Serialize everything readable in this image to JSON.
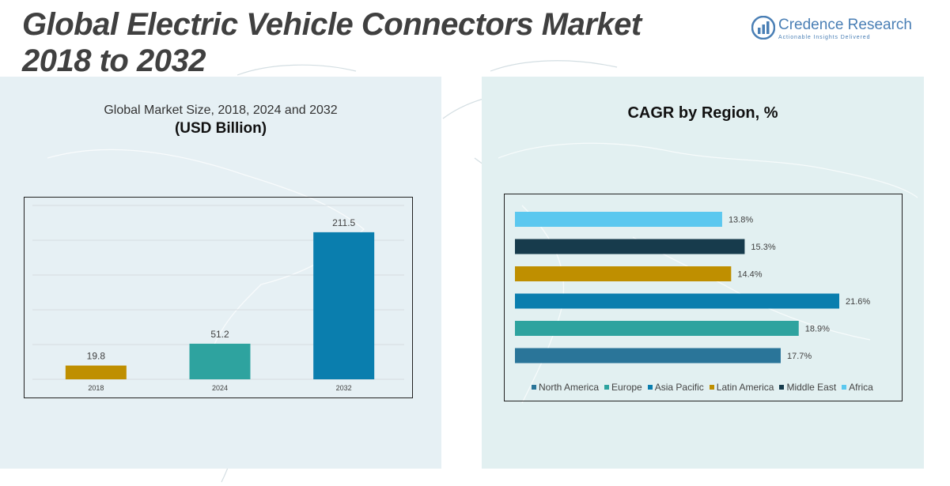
{
  "header": {
    "title_line1": "Global Electric Vehicle Connectors Market",
    "title_line2": "2018 to 2032"
  },
  "logo": {
    "name": "Credence Research",
    "tagline": "Actionable Insights Delivered"
  },
  "left_panel": {
    "subtitle": "Global Market Size, 2018, 2024 and 2032",
    "unit": "(USD Billion)"
  },
  "right_panel": {
    "title": "CAGR by Region, %"
  },
  "chart_data": [
    {
      "type": "bar",
      "title": "Global Market Size, 2018, 2024 and 2032",
      "ylabel": "USD Billion",
      "categories": [
        "2018",
        "2024",
        "2032"
      ],
      "values": [
        19.8,
        51.2,
        211.5
      ],
      "value_labels": [
        "19.8",
        "51.2",
        "211.5"
      ],
      "colors": [
        "#bf8f00",
        "#2ea39f",
        "#0a7eae"
      ],
      "ylim": [
        0,
        250
      ],
      "grid": true
    },
    {
      "type": "bar",
      "orientation": "horizontal",
      "title": "CAGR by Region, %",
      "categories": [
        "Africa",
        "Middle East",
        "Latin America",
        "Asia Pacific",
        "Europe",
        "North America"
      ],
      "values": [
        13.8,
        15.3,
        14.4,
        21.6,
        18.9,
        17.7
      ],
      "value_labels": [
        "13.8%",
        "15.3%",
        "14.4%",
        "21.6%",
        "18.9%",
        "17.7%"
      ],
      "colors": [
        "#5bc8ef",
        "#173b4c",
        "#bf8f00",
        "#0a7eae",
        "#2ea39f",
        "#2a7599"
      ],
      "xlim": [
        0,
        22
      ],
      "legend": {
        "position": "bottom",
        "entries": [
          {
            "label": "North America",
            "color": "#2a7599"
          },
          {
            "label": "Europe",
            "color": "#2ea39f"
          },
          {
            "label": "Asia Pacific",
            "color": "#0a7eae"
          },
          {
            "label": "Latin America",
            "color": "#bf8f00"
          },
          {
            "label": "Middle East",
            "color": "#173b4c"
          },
          {
            "label": "Africa",
            "color": "#5bc8ef"
          }
        ]
      }
    }
  ]
}
